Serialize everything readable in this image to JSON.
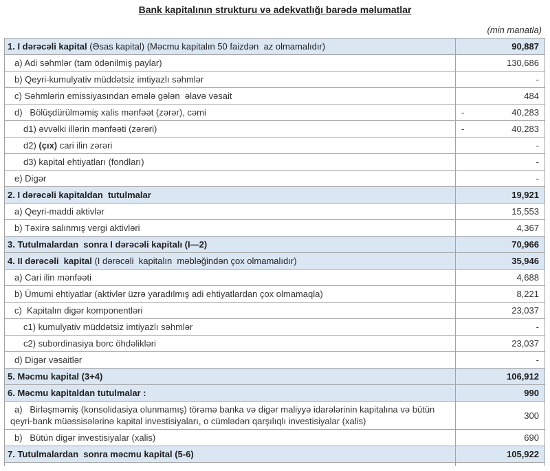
{
  "page": {
    "title": "Bank kapitalının strukturu və adekvatlığı barədə məlumatlar",
    "unit_note": "(min manatla)"
  },
  "table": {
    "rows": [
      {
        "level": "header",
        "pre": "",
        "bold": "1. I dərəcəli kapital",
        "post": " (Əsas kapital) (Məcmu kapitalın 50 faizdən  az olmamalıdır)",
        "minus": "",
        "value": "90,887",
        "value_bold": true
      },
      {
        "level": "sub1",
        "pre": "a) Adi səhmlər (tam ödənilmiş paylar)",
        "bold": "",
        "post": "",
        "minus": "",
        "value": "130,686",
        "value_bold": false
      },
      {
        "level": "sub1",
        "pre": "b) Qeyri-kumulyativ müddətsiz imtiyazlı səhmlər",
        "bold": "",
        "post": "",
        "minus": "",
        "value": "-",
        "value_bold": false
      },
      {
        "level": "sub1",
        "pre": "c) Səhmlərin emissiyasından əmələ gələn  əlavə vəsait",
        "bold": "",
        "post": "",
        "minus": "",
        "value": "484",
        "value_bold": false
      },
      {
        "level": "sub1",
        "pre": "d)   Bölüşdürülməmiş xalis mənfəət (zərər), cəmi",
        "bold": "",
        "post": "",
        "minus": "-",
        "value": "40,283",
        "value_bold": false
      },
      {
        "level": "sub2",
        "pre": "d1) əvvəlki illərin mənfəəti (zərəri)",
        "bold": "",
        "post": "",
        "minus": "-",
        "value": "40,283",
        "value_bold": false
      },
      {
        "level": "sub2",
        "pre": "d2) ",
        "bold": "(çıx)",
        "post": " cari ilin zərəri",
        "minus": "",
        "value": "-",
        "value_bold": false
      },
      {
        "level": "sub2",
        "pre": "d3) kapital ehtiyatları (fondları)",
        "bold": "",
        "post": "",
        "minus": "",
        "value": "-",
        "value_bold": false
      },
      {
        "level": "sub1",
        "pre": "e) Digər",
        "bold": "",
        "post": "",
        "minus": "",
        "value": "-",
        "value_bold": false
      },
      {
        "level": "header",
        "pre": "",
        "bold": "2. I dərəcəli kapitaldan  tutulmalar",
        "post": "",
        "minus": "",
        "value": "19,921",
        "value_bold": true
      },
      {
        "level": "sub1",
        "pre": "a) Qeyri-maddi aktivlər",
        "bold": "",
        "post": "",
        "minus": "",
        "value": "15,553",
        "value_bold": false
      },
      {
        "level": "sub1",
        "pre": "b) Təxirə salınmış vergi aktivləri",
        "bold": "",
        "post": "",
        "minus": "",
        "value": "4,367",
        "value_bold": false
      },
      {
        "level": "header",
        "pre": "",
        "bold": "3. Tutulmalardan  sonra I dərəcəli kapitalı (I—2)",
        "post": "",
        "minus": "",
        "value": "70,966",
        "value_bold": true
      },
      {
        "level": "header",
        "pre": "",
        "bold": "4. II dərəcəli  kapital",
        "post": " (I dərəcəli  kapitalın  məbləğindən çox olmamalıdır)",
        "minus": "",
        "value": "35,946",
        "value_bold": true
      },
      {
        "level": "sub1",
        "pre": "a) Cari ilin mənfəəti",
        "bold": "",
        "post": "",
        "minus": "",
        "value": "4,688",
        "value_bold": false
      },
      {
        "level": "sub1",
        "pre": "b) Ümumi ehtiyatlar (aktivlər üzrə yaradılmış adi ehtiyatlardan çox olmamaqla)",
        "bold": "",
        "post": "",
        "minus": "",
        "value": "8,221",
        "value_bold": false
      },
      {
        "level": "sub1",
        "pre": "c)  Kapitalın digər komponentləri",
        "bold": "",
        "post": "",
        "minus": "",
        "value": "23,037",
        "value_bold": false
      },
      {
        "level": "sub2",
        "pre": "c1) kumulyativ müddətsiz imtiyazlı səhmlər",
        "bold": "",
        "post": "",
        "minus": "",
        "value": "-",
        "value_bold": false
      },
      {
        "level": "sub2",
        "pre": "c2) subordinasiya borc öhdəlikləri",
        "bold": "",
        "post": "",
        "minus": "",
        "value": "23,037",
        "value_bold": false
      },
      {
        "level": "sub1",
        "pre": "d) Digər vəsaitlər",
        "bold": "",
        "post": "",
        "minus": "",
        "value": "-",
        "value_bold": false
      },
      {
        "level": "header",
        "pre": "",
        "bold": "5. Məcmu kapital (3+4)",
        "post": "",
        "minus": "",
        "value": "106,912",
        "value_bold": true
      },
      {
        "level": "header",
        "pre": "",
        "bold": "6. Məcmu kapitaldan tutulmalar :",
        "post": "",
        "minus": "",
        "value": "990",
        "value_bold": true
      },
      {
        "level": "sub0 hang",
        "pre": "a)   Birləşməmiş (konsolidasiya olunmamış) törəmə banka və digər maliyyə idarələrinin kapitalına və bütün qeyri-bank müəssisələrinə kapital investisiyaları, o cümlədən qarşılıqlı investisiyalar (xalis)",
        "bold": "",
        "post": "",
        "minus": "",
        "value": "300",
        "value_bold": false
      },
      {
        "level": "sub1",
        "pre": "b)   Bütün digər investisiyalar (xalis)",
        "bold": "",
        "post": "",
        "minus": "",
        "value": "690",
        "value_bold": false
      },
      {
        "level": "header",
        "pre": "",
        "bold": "7. Tutulmalardan  sonra məcmu kapital (5-6)",
        "post": "",
        "minus": "",
        "value": "105,922",
        "value_bold": true
      }
    ]
  }
}
